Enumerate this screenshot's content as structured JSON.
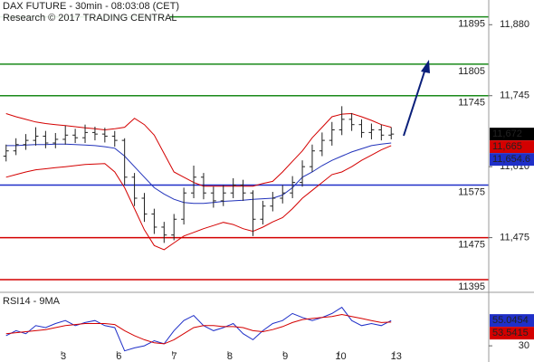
{
  "chart_data": [
    {
      "type": "ohlc",
      "title": "DAX FUTURE - 30min - 08:03:08 (CET)",
      "subtitle": "Research © 2017 TRADING CENTRAL",
      "x": [
        0,
        0.178,
        0.356,
        0.534,
        0.712,
        0.89,
        1.068,
        1.246,
        1.424,
        1.602,
        1.78,
        1.958,
        2.136,
        2.314,
        2.492,
        2.67,
        2.848,
        3.026,
        3.204,
        3.382,
        3.56,
        3.738,
        3.916,
        4.094,
        4.272,
        4.45,
        4.628,
        4.806,
        4.984,
        5.162,
        5.34,
        5.518,
        5.696,
        5.874,
        6.052,
        6.23,
        6.408,
        6.586,
        6.764,
        6.942
      ],
      "xlim": [
        -0.11,
        8.7
      ],
      "xticks": [
        {
          "value": 1,
          "label": "3"
        },
        {
          "value": 2,
          "label": "6"
        },
        {
          "value": 3,
          "label": "7"
        },
        {
          "value": 4,
          "label": "8"
        },
        {
          "value": 5,
          "label": "9"
        },
        {
          "value": 6,
          "label": "10"
        },
        {
          "value": 7,
          "label": "13"
        }
      ],
      "ylim": [
        11371,
        11927
      ],
      "yticks": [
        {
          "value": 11880,
          "label": "11,880"
        },
        {
          "value": 11745,
          "label": "11,745"
        },
        {
          "value": 11610,
          "label": "11,610"
        },
        {
          "value": 11475,
          "label": "11,475"
        }
      ],
      "ohlc": {
        "color": "#222222",
        "open": [
          11630,
          11640,
          11652,
          11660,
          11668,
          11655,
          11662,
          11670,
          11665,
          11675,
          11672,
          11668,
          11660,
          11590,
          11550,
          11520,
          11495,
          11480,
          11510,
          11560,
          11590,
          11560,
          11545,
          11560,
          11575,
          11560,
          11510,
          11535,
          11550,
          11560,
          11580,
          11610,
          11640,
          11660,
          11680,
          11700,
          11690,
          11675,
          11680,
          11670
        ],
        "high": [
          11652,
          11664,
          11672,
          11685,
          11678,
          11674,
          11688,
          11682,
          11690,
          11686,
          11684,
          11678,
          11664,
          11598,
          11560,
          11530,
          11505,
          11520,
          11570,
          11612,
          11598,
          11572,
          11575,
          11588,
          11585,
          11565,
          11545,
          11562,
          11575,
          11592,
          11622,
          11652,
          11675,
          11695,
          11725,
          11712,
          11700,
          11692,
          11690,
          11685
        ],
        "low": [
          11620,
          11632,
          11642,
          11650,
          11645,
          11645,
          11652,
          11655,
          11655,
          11660,
          11656,
          11648,
          11575,
          11535,
          11505,
          11482,
          11465,
          11470,
          11500,
          11550,
          11548,
          11532,
          11535,
          11550,
          11545,
          11478,
          11500,
          11525,
          11540,
          11550,
          11572,
          11600,
          11630,
          11650,
          11670,
          11678,
          11665,
          11662,
          11660,
          11662
        ],
        "close": [
          11640,
          11652,
          11660,
          11668,
          11655,
          11662,
          11670,
          11665,
          11675,
          11672,
          11668,
          11660,
          11590,
          11550,
          11520,
          11495,
          11480,
          11510,
          11560,
          11590,
          11560,
          11545,
          11560,
          11575,
          11560,
          11510,
          11535,
          11550,
          11560,
          11580,
          11610,
          11640,
          11660,
          11680,
          11700,
          11690,
          11675,
          11680,
          11670,
          11672
        ]
      },
      "series": [
        {
          "color": "#d40000",
          "values": [
            11711,
            11705,
            11700,
            11695,
            11692,
            11690,
            11688,
            11686,
            11684,
            11682,
            11680,
            11682,
            11685,
            11702,
            11690,
            11670,
            11635,
            11600,
            11590,
            11580,
            11573,
            11573,
            11573,
            11573,
            11573,
            11573,
            11578,
            11582,
            11600,
            11620,
            11640,
            11665,
            11685,
            11705,
            11710,
            11711,
            11705,
            11698,
            11690,
            11685
          ]
        },
        {
          "color": "#d40000",
          "values": [
            11590,
            11595,
            11600,
            11604,
            11606,
            11608,
            11610,
            11612,
            11614,
            11615,
            11616,
            11600,
            11570,
            11530,
            11490,
            11460,
            11452,
            11465,
            11478,
            11485,
            11492,
            11498,
            11504,
            11500,
            11492,
            11487,
            11495,
            11505,
            11513,
            11530,
            11550,
            11565,
            11580,
            11595,
            11600,
            11610,
            11622,
            11632,
            11642,
            11650
          ]
        },
        {
          "color": "#2233bb",
          "values": [
            11650,
            11650,
            11651,
            11652,
            11652,
            11653,
            11653,
            11652,
            11651,
            11650,
            11648,
            11645,
            11630,
            11610,
            11590,
            11570,
            11558,
            11548,
            11542,
            11540,
            11540,
            11542,
            11544,
            11545,
            11546,
            11548,
            11549,
            11550,
            11556,
            11570,
            11590,
            11600,
            11612,
            11622,
            11630,
            11638,
            11644,
            11650,
            11653,
            11655
          ]
        }
      ],
      "levels": [
        {
          "value": 11895,
          "color": "#1a8a1a"
        },
        {
          "value": 11805,
          "color": "#1a8a1a"
        },
        {
          "value": 11745,
          "color": "#1a8a1a"
        },
        {
          "value": 11575,
          "color": "#1f2fc8"
        },
        {
          "value": 11475,
          "color": "#d40000"
        },
        {
          "value": 11395,
          "color": "#d40000"
        }
      ],
      "last_labels": [
        {
          "value": 11672,
          "label": "11,672",
          "color": "#000000"
        },
        {
          "value": 11665,
          "label": "11,665",
          "color": "#d40000"
        },
        {
          "value": 11654.6,
          "label": "11,654.6",
          "color": "#1f2fc8"
        }
      ]
    },
    {
      "type": "line",
      "title": "RSI14 - 9MA",
      "x": [
        0,
        0.178,
        0.356,
        0.534,
        0.712,
        0.89,
        1.068,
        1.246,
        1.424,
        1.602,
        1.78,
        1.958,
        2.136,
        2.314,
        2.492,
        2.67,
        2.848,
        3.026,
        3.204,
        3.382,
        3.56,
        3.738,
        3.916,
        4.094,
        4.272,
        4.45,
        4.628,
        4.806,
        4.984,
        5.162,
        5.34,
        5.518,
        5.696,
        5.874,
        6.052,
        6.23,
        6.408,
        6.586,
        6.764,
        6.942
      ],
      "xlim": [
        -0.11,
        8.7
      ],
      "ylim": [
        14,
        82
      ],
      "yticks": [
        30
      ],
      "series": [
        {
          "color": "#1f2fc8",
          "values": [
            40,
            45,
            42,
            50,
            48,
            52,
            55,
            50,
            53,
            55,
            50,
            48,
            25,
            28,
            30,
            35,
            32,
            45,
            55,
            60,
            50,
            45,
            48,
            52,
            42,
            36,
            45,
            52,
            55,
            62,
            58,
            55,
            58,
            62,
            68,
            55,
            50,
            52,
            50,
            55
          ]
        },
        {
          "color": "#d40000",
          "values": [
            42,
            43,
            44,
            45,
            46,
            48,
            50,
            51,
            52,
            52,
            52,
            51,
            45,
            40,
            36,
            33,
            32,
            36,
            42,
            48,
            50,
            50,
            49,
            49,
            48,
            45,
            44,
            46,
            49,
            53,
            56,
            57,
            58,
            59,
            61,
            59,
            57,
            55,
            53,
            53.5
          ]
        }
      ],
      "last_labels": [
        {
          "value": 55.0454,
          "label": "55.0454",
          "color": "#1f2fc8"
        },
        {
          "value": 53.5415,
          "label": "53.5415",
          "color": "#d40000"
        }
      ]
    }
  ]
}
